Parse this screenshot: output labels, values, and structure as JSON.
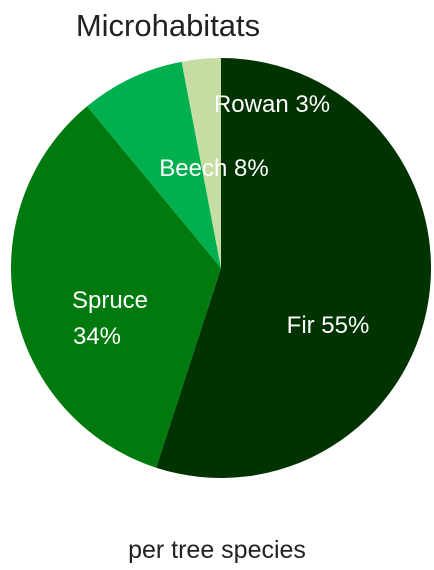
{
  "chart_data": {
    "type": "pie",
    "title": "Microhabitats",
    "caption": "per tree species",
    "slices": [
      {
        "label": "Fir",
        "value": 55,
        "display": "55%",
        "color": "#003300"
      },
      {
        "label": "Spruce",
        "value": 34,
        "display": "34%",
        "color": "#007a0f"
      },
      {
        "label": "Beech",
        "value": 8,
        "display": "8%",
        "color": "#00b04f"
      },
      {
        "label": "Rowan",
        "value": 3,
        "display": "3%",
        "color": "#c5dca3"
      }
    ]
  }
}
